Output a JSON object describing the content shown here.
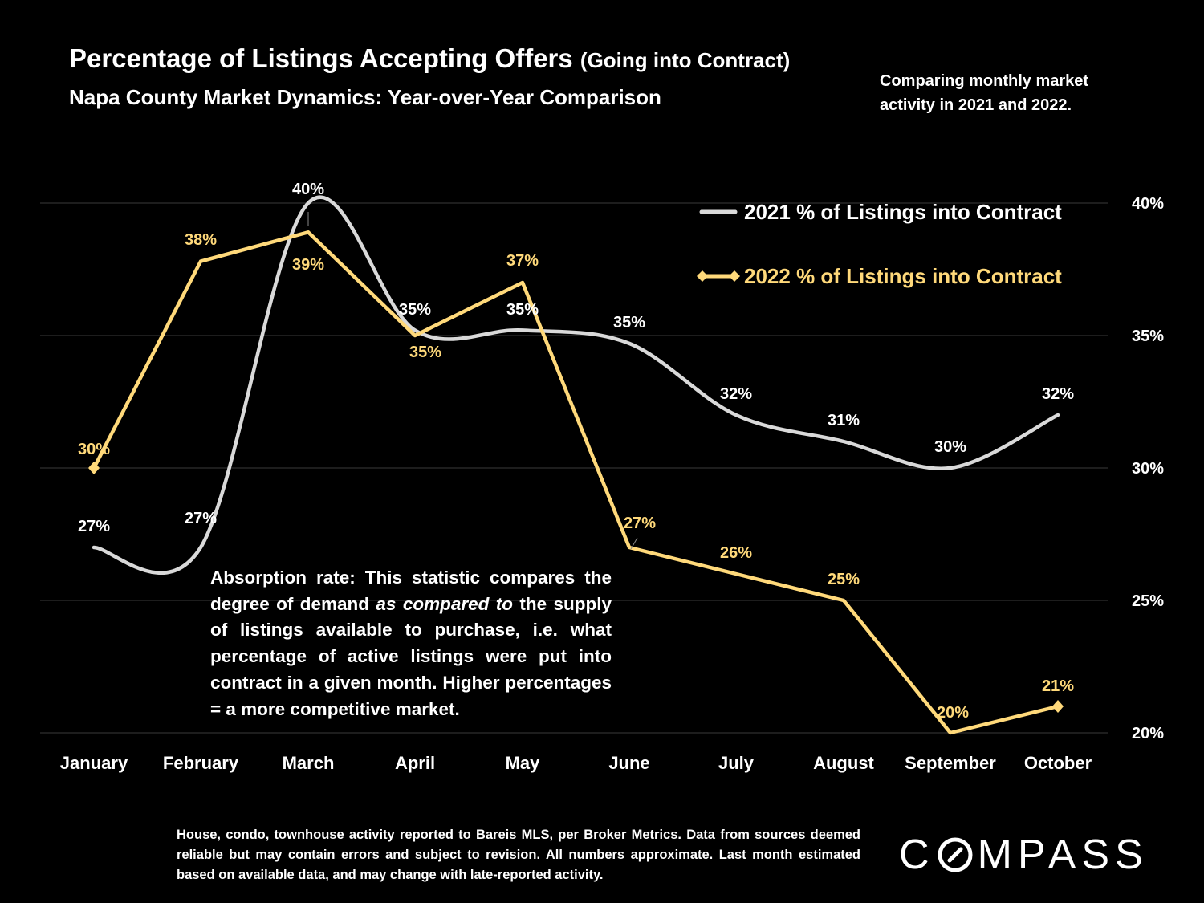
{
  "header": {
    "title_main": "Percentage of Listings Accepting Offers",
    "title_paren": "(Going into Contract)",
    "subtitle": "Napa County Market Dynamics: Year-over-Year Comparison",
    "note": "Comparing monthly market activity in 2021 and 2022."
  },
  "absorption_text": "Absorption rate: This statistic compares the degree of demand as compared to the supply of listings available to purchase, i.e. what percentage of active listings were put into contract in a given month. Higher percentages = a more competitive market.",
  "absorption_parts": {
    "pre": "Absorption rate: This statistic compares the degree of demand ",
    "italic": "as compared to",
    "post": " the supply of listings available to purchase, i.e. what percentage of active listings were put into contract in a given month. Higher percentages = a more competitive market."
  },
  "footer_text": "House, condo, townhouse activity reported to Bareis MLS, per Broker Metrics. Data from sources deemed reliable but may contain errors and subject to revision. All numbers approximate. Last month estimated based on available data, and may change with late-reported activity.",
  "logo": {
    "left": "C",
    "right": "MPASS"
  },
  "colors": {
    "background": "#000000",
    "series_2021": "#d9d9d9",
    "series_2022": "#ffd97a",
    "grid": "#3a3a3a",
    "text": "#ffffff"
  },
  "chart_data": {
    "type": "line",
    "categories": [
      "January",
      "February",
      "March",
      "April",
      "May",
      "June",
      "July",
      "August",
      "September",
      "October"
    ],
    "series": [
      {
        "name": "2021 % of Listings into Contract",
        "values": [
          27,
          27,
          40,
          35,
          35,
          35,
          32,
          31,
          30,
          32
        ],
        "true_values": [
          27,
          27,
          40,
          35.2,
          35.2,
          34.7,
          32,
          31,
          30,
          32
        ],
        "smooth": true,
        "marker": "none"
      },
      {
        "name": "2022 % of Listings into Contract",
        "values": [
          30,
          38,
          39,
          35,
          37,
          27,
          26,
          25,
          20,
          21
        ],
        "true_values": [
          30,
          37.8,
          38.9,
          35,
          37,
          27,
          26,
          25,
          20,
          21
        ],
        "smooth": false,
        "marker": "diamond"
      }
    ],
    "label_suffix": "%",
    "y_axis": {
      "ticks": [
        20,
        25,
        30,
        35,
        40
      ],
      "tick_suffix": "%",
      "position": "right",
      "ylim": [
        20,
        40
      ]
    },
    "gridlines": true,
    "legend": "top-right"
  }
}
